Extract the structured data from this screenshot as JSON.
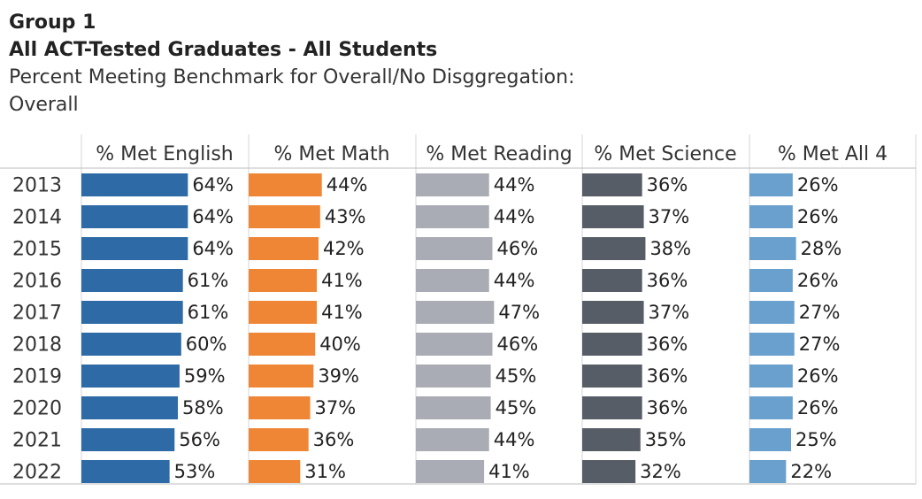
{
  "header": {
    "group": "Group 1",
    "title": "All ACT-Tested Graduates - All Students",
    "subtitle_line1": "Percent Meeting Benchmark for Overall/No Disggregation:",
    "subtitle_line2": "Overall"
  },
  "chart_data": {
    "type": "bar",
    "orientation": "horizontal",
    "categories": [
      "2013",
      "2014",
      "2015",
      "2016",
      "2017",
      "2018",
      "2019",
      "2020",
      "2021",
      "2022"
    ],
    "series": [
      {
        "name": "% Met English",
        "color": "#2e6aa6",
        "values": [
          64,
          64,
          64,
          61,
          61,
          60,
          59,
          58,
          56,
          53
        ],
        "labels": [
          "64%",
          "64%",
          "64%",
          "61%",
          "61%",
          "60%",
          "59%",
          "58%",
          "56%",
          "53%"
        ]
      },
      {
        "name": "% Met Math",
        "color": "#ef8636",
        "values": [
          44,
          43,
          42,
          41,
          41,
          40,
          39,
          37,
          36,
          31
        ],
        "labels": [
          "44%",
          "43%",
          "42%",
          "41%",
          "41%",
          "40%",
          "39%",
          "37%",
          "36%",
          "31%"
        ]
      },
      {
        "name": "% Met Reading",
        "color": "#a9acb5",
        "values": [
          44,
          44,
          46,
          44,
          47,
          46,
          45,
          45,
          44,
          41
        ],
        "labels": [
          "44%",
          "44%",
          "46%",
          "44%",
          "47%",
          "46%",
          "45%",
          "45%",
          "44%",
          "41%"
        ]
      },
      {
        "name": "% Met Science",
        "color": "#575d66",
        "values": [
          36,
          37,
          38,
          36,
          37,
          36,
          36,
          36,
          35,
          32
        ],
        "labels": [
          "36%",
          "37%",
          "38%",
          "36%",
          "37%",
          "36%",
          "36%",
          "36%",
          "35%",
          "32%"
        ]
      },
      {
        "name": "% Met All 4",
        "color": "#6aa0cd",
        "values": [
          26,
          26,
          28,
          26,
          27,
          27,
          26,
          26,
          25,
          22
        ],
        "labels": [
          "26%",
          "26%",
          "28%",
          "26%",
          "27%",
          "27%",
          "26%",
          "26%",
          "25%",
          "22%"
        ]
      }
    ]
  }
}
